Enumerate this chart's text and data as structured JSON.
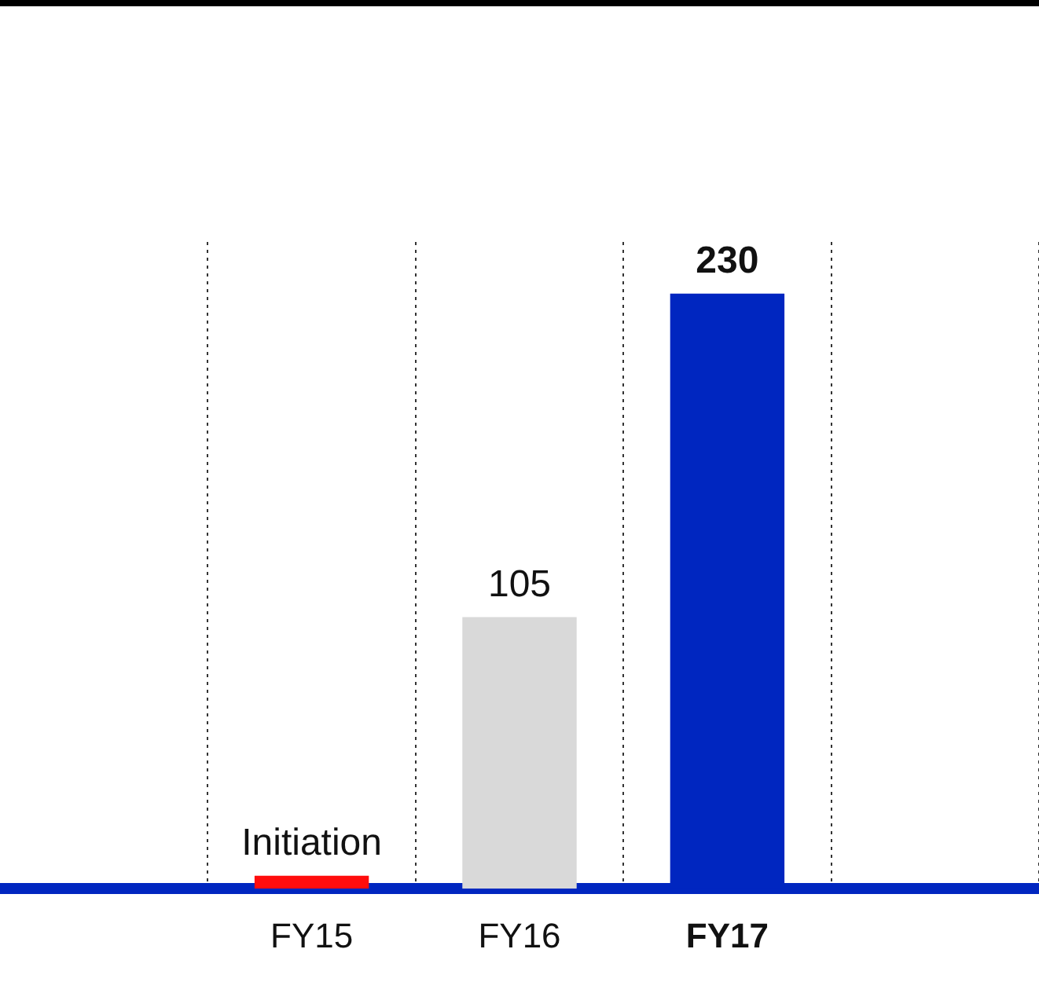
{
  "chart_data": {
    "type": "bar",
    "categories": [
      null,
      "FY15",
      "FY16",
      "FY17",
      null
    ],
    "values": [
      null,
      5,
      105,
      230,
      null
    ],
    "colors": [
      "#ff0d0d",
      "#ff0d0d",
      "#d9d9d9",
      "#0026c0",
      "#ff0d0d"
    ],
    "value_labels": [
      null,
      "Initiation",
      "105",
      "230",
      null
    ],
    "grid": "x",
    "legend": false
  }
}
